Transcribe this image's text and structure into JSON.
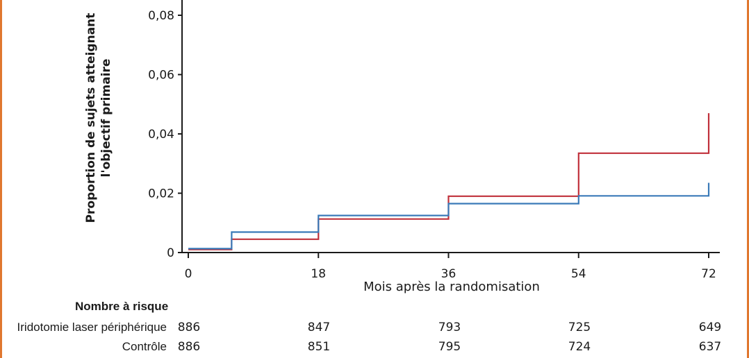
{
  "chart_data": {
    "type": "line",
    "step": true,
    "ylabel_line1": "Proportion de sujets atteignant",
    "ylabel_line2": "l'objectif primaire",
    "xlabel": "Mois après la randomisation",
    "xlim": [
      0,
      72
    ],
    "ylim": [
      0,
      0.08
    ],
    "xticks": [
      0,
      18,
      36,
      54,
      72
    ],
    "xtick_labels": [
      "0",
      "18",
      "36",
      "54",
      "72"
    ],
    "yticks": [
      0,
      0.02,
      0.04,
      0.06,
      0.08
    ],
    "ytick_labels": [
      "0",
      "0,02",
      "0,04",
      "0,06",
      "0,08"
    ],
    "grid": false,
    "series": [
      {
        "color": "#c0303a",
        "points": [
          [
            0,
            0.001
          ],
          [
            6,
            0.001
          ],
          [
            6,
            0.0045
          ],
          [
            18,
            0.0045
          ],
          [
            18,
            0.0113
          ],
          [
            36,
            0.0113
          ],
          [
            36,
            0.019
          ],
          [
            54,
            0.019
          ],
          [
            54,
            0.0335
          ],
          [
            72,
            0.0335
          ],
          [
            72,
            0.047
          ]
        ]
      },
      {
        "color": "#3a7ab8",
        "points": [
          [
            0,
            0.0013
          ],
          [
            6,
            0.0013
          ],
          [
            6,
            0.0069
          ],
          [
            18,
            0.0069
          ],
          [
            18,
            0.0125
          ],
          [
            36,
            0.0125
          ],
          [
            36,
            0.0165
          ],
          [
            54,
            0.0165
          ],
          [
            54,
            0.0191
          ],
          [
            72,
            0.0191
          ],
          [
            72,
            0.0235
          ]
        ]
      }
    ],
    "risk_table": {
      "title": "Nombre à risque",
      "rows": [
        {
          "label": "Iridotomie laser périphérique",
          "values": [
            "886",
            "847",
            "793",
            "725",
            "649"
          ]
        },
        {
          "label": "Contrôle",
          "values": [
            "886",
            "851",
            "795",
            "724",
            "637"
          ]
        }
      ]
    }
  },
  "colors": {
    "frame": "#e0772f",
    "axis": "#1a1a1a"
  }
}
